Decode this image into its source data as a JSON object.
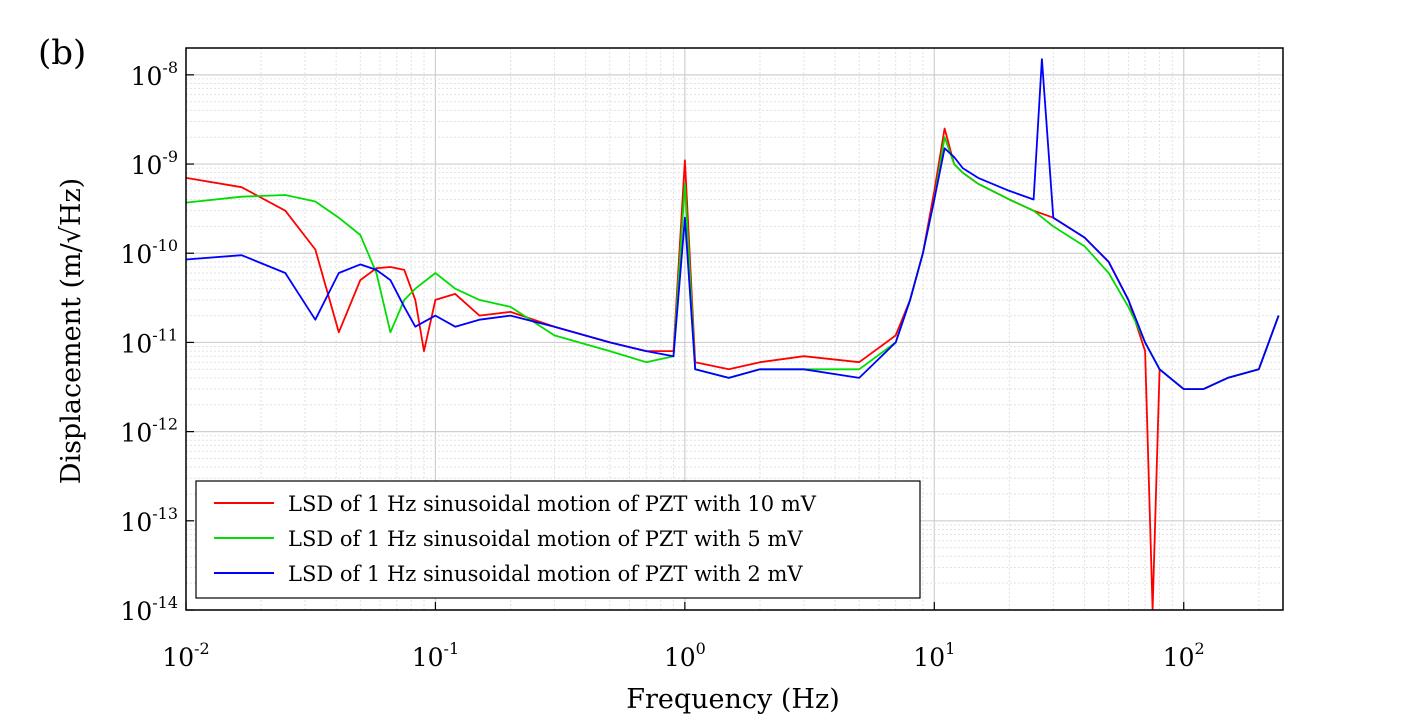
{
  "panel_label": "(b)",
  "chart_data": {
    "type": "line",
    "title": "",
    "xlabel": "Frequency (Hz)",
    "ylabel": "Displacement (m/√Hz)",
    "x_scale": "log",
    "y_scale": "log",
    "xlim": [
      0.01,
      250
    ],
    "ylim": [
      1e-14,
      2e-08
    ],
    "grid": true,
    "minor_grid": true,
    "legend_position": "bottom-left",
    "x_ticks": [
      {
        "base": "10",
        "exp": "-2",
        "value": 0.01
      },
      {
        "base": "10",
        "exp": "-1",
        "value": 0.1
      },
      {
        "base": "10",
        "exp": "0",
        "value": 1
      },
      {
        "base": "10",
        "exp": "1",
        "value": 10
      },
      {
        "base": "10",
        "exp": "2",
        "value": 100
      }
    ],
    "y_ticks": [
      {
        "base": "10",
        "exp": "-8",
        "value": 1e-08
      },
      {
        "base": "10",
        "exp": "-9",
        "value": 1e-09
      },
      {
        "base": "10",
        "exp": "-10",
        "value": 1e-10
      },
      {
        "base": "10",
        "exp": "-11",
        "value": 1e-11
      },
      {
        "base": "10",
        "exp": "-12",
        "value": 1e-12
      },
      {
        "base": "10",
        "exp": "-13",
        "value": 1e-13
      },
      {
        "base": "10",
        "exp": "-14",
        "value": 1e-14
      }
    ],
    "series": [
      {
        "name": "LSD of 1 Hz sinusoidal motion of PZT with 10 mV",
        "color": "#ff0000",
        "x": [
          0.01,
          0.0167,
          0.025,
          0.033,
          0.041,
          0.05,
          0.058,
          0.066,
          0.075,
          0.083,
          0.09,
          0.1,
          0.12,
          0.15,
          0.2,
          0.3,
          0.5,
          0.7,
          0.9,
          1.0,
          1.1,
          1.5,
          2,
          3,
          5,
          7,
          8,
          9,
          10,
          11,
          12,
          13,
          15,
          20,
          25,
          30,
          40,
          50,
          60,
          70,
          75,
          80,
          100,
          120,
          150,
          200,
          240
        ],
        "y": [
          7e-10,
          5.5e-10,
          3e-10,
          1.1e-10,
          1.3e-11,
          5e-11,
          6.8e-11,
          7e-11,
          6.5e-11,
          3e-11,
          8e-12,
          3e-11,
          3.5e-11,
          2e-11,
          2.2e-11,
          1.5e-11,
          1e-11,
          8e-12,
          8e-12,
          1.1e-09,
          6e-12,
          5e-12,
          6e-12,
          7e-12,
          6e-12,
          1.2e-11,
          3e-11,
          1e-10,
          5e-10,
          2.5e-09,
          1e-09,
          8e-10,
          6e-10,
          4e-10,
          3e-10,
          2.5e-10,
          1.5e-10,
          8e-11,
          3e-11,
          8e-12,
          1e-14,
          5e-12,
          3e-12,
          3e-12,
          4e-12,
          5e-12,
          2e-11
        ]
      },
      {
        "name": "LSD of 1 Hz sinusoidal motion of PZT with 5 mV",
        "color": "#00dd00",
        "x": [
          0.01,
          0.0167,
          0.025,
          0.033,
          0.041,
          0.05,
          0.058,
          0.066,
          0.075,
          0.083,
          0.1,
          0.12,
          0.15,
          0.2,
          0.3,
          0.5,
          0.7,
          0.9,
          1.0,
          1.1,
          1.5,
          2,
          3,
          5,
          7,
          8,
          9,
          10,
          11,
          12,
          13,
          15,
          20,
          25,
          30,
          40,
          50,
          60,
          70,
          80,
          100,
          120,
          150,
          200,
          240
        ],
        "y": [
          3.7e-10,
          4.3e-10,
          4.5e-10,
          3.8e-10,
          2.5e-10,
          1.6e-10,
          6e-11,
          1.3e-11,
          3e-11,
          4e-11,
          6e-11,
          4e-11,
          3e-11,
          2.5e-11,
          1.2e-11,
          8e-12,
          6e-12,
          7e-12,
          6e-10,
          5e-12,
          4e-12,
          5e-12,
          5e-12,
          5e-12,
          1e-11,
          3e-11,
          1e-10,
          4e-10,
          2e-09,
          1e-09,
          8e-10,
          6e-10,
          4e-10,
          3e-10,
          2e-10,
          1.2e-10,
          6e-11,
          2.5e-11,
          1e-11,
          5e-12,
          3e-12,
          3e-12,
          4e-12,
          5e-12,
          2e-11
        ]
      },
      {
        "name": "LSD of 1 Hz sinusoidal motion of PZT with 2 mV",
        "color": "#0000ff",
        "x": [
          0.01,
          0.0167,
          0.025,
          0.033,
          0.041,
          0.05,
          0.058,
          0.066,
          0.075,
          0.083,
          0.1,
          0.12,
          0.15,
          0.2,
          0.3,
          0.5,
          0.7,
          0.9,
          1.0,
          1.1,
          1.5,
          2,
          3,
          5,
          7,
          8,
          9,
          10,
          11,
          12,
          13,
          15,
          20,
          25,
          27,
          30,
          40,
          50,
          60,
          70,
          80,
          100,
          120,
          150,
          200,
          240
        ],
        "y": [
          8.5e-11,
          9.5e-11,
          6e-11,
          1.8e-11,
          6e-11,
          7.5e-11,
          6.5e-11,
          5e-11,
          2.5e-11,
          1.5e-11,
          2e-11,
          1.5e-11,
          1.8e-11,
          2e-11,
          1.5e-11,
          1e-11,
          8e-12,
          7e-12,
          2.5e-10,
          5e-12,
          4e-12,
          5e-12,
          5e-12,
          4e-12,
          1e-11,
          3e-11,
          1e-10,
          4e-10,
          1.5e-09,
          1.2e-09,
          9e-10,
          7e-10,
          5e-10,
          4e-10,
          1.5e-08,
          2.5e-10,
          1.5e-10,
          8e-11,
          3e-11,
          1e-11,
          5e-12,
          3e-12,
          3e-12,
          4e-12,
          5e-12,
          2e-11
        ]
      }
    ]
  }
}
